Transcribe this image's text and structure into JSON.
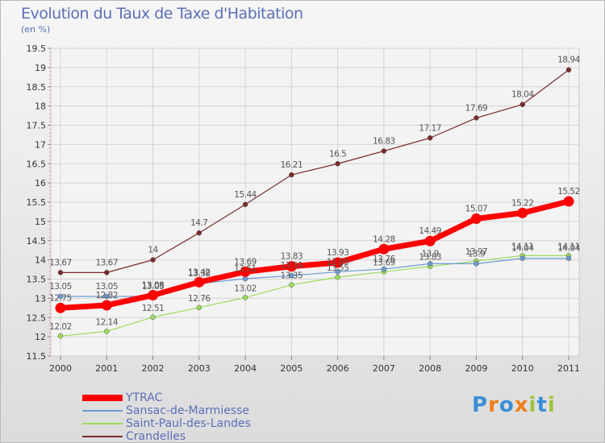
{
  "chart_data": {
    "type": "line",
    "title": "Evolution du Taux de Taxe d'Habitation",
    "subtitle": "(en %)",
    "x": [
      "2000",
      "2001",
      "2002",
      "2003",
      "2004",
      "2005",
      "2006",
      "2007",
      "2008",
      "2009",
      "2010",
      "2011"
    ],
    "ylim": [
      11.5,
      19.5
    ],
    "yticks": [
      "11.5",
      "12",
      "12.5",
      "13",
      "13.5",
      "14",
      "14.5",
      "15",
      "15.5",
      "16",
      "16.5",
      "17",
      "17.5",
      "18",
      "18.5",
      "19",
      "19.5"
    ],
    "grid": true,
    "legend_position": "bottom-left",
    "series": [
      {
        "name": "YTRAC",
        "color": "#ff0000",
        "values": [
          12.75,
          12.82,
          13.08,
          13.42,
          13.69,
          13.83,
          13.93,
          14.28,
          14.49,
          15.07,
          15.22,
          15.52
        ],
        "labels": [
          "12.75",
          "12.82",
          "13.08",
          "13.42",
          "13.69",
          "13.83",
          "13.93",
          "14.28",
          "14.49",
          "15.07",
          "15.22",
          "15.52"
        ]
      },
      {
        "name": "Sansac-de-Marmiesse",
        "color": "#6a9bd1",
        "values": [
          13.05,
          13.05,
          13.05,
          13.38,
          13.51,
          13.59,
          13.69,
          13.76,
          13.9,
          13.9,
          14.04,
          14.04
        ],
        "labels": [
          "13.05",
          "13.05",
          "13.05",
          "13.38",
          "13.51",
          "13.59",
          "13.69",
          "13.76",
          "13.9",
          "13.9",
          "14.04",
          "14.04"
        ]
      },
      {
        "name": "Saint-Paul-des-Landes",
        "color": "#9bdc5a",
        "values": [
          12.02,
          12.14,
          12.51,
          12.76,
          13.02,
          13.35,
          13.55,
          13.69,
          13.83,
          13.97,
          14.11,
          14.11
        ],
        "labels": [
          "12.02",
          "12.14",
          "12.51",
          "12.76",
          "13.02",
          "13.35",
          "13.55",
          "13.69",
          "13.83",
          "13.97",
          "14.11",
          "14.11"
        ]
      },
      {
        "name": "Crandelles",
        "color": "#7a2a2a",
        "values": [
          13.67,
          13.67,
          14.0,
          14.7,
          15.44,
          16.21,
          16.5,
          16.83,
          17.17,
          17.69,
          18.04,
          18.94
        ],
        "labels": [
          "13.67",
          "13.67",
          "14",
          "14.7",
          "15.44",
          "16.21",
          "16.5",
          "16.83",
          "17.17",
          "17.69",
          "18.04",
          "18.94"
        ]
      }
    ]
  },
  "logo": {
    "text": "Proxiti",
    "colors": [
      "#3a8fd8",
      "#ef7f1a",
      "#3a8fd8",
      "#ef7f1a",
      "#9bc43a",
      "#3a8fd8",
      "#9bc43a"
    ]
  }
}
